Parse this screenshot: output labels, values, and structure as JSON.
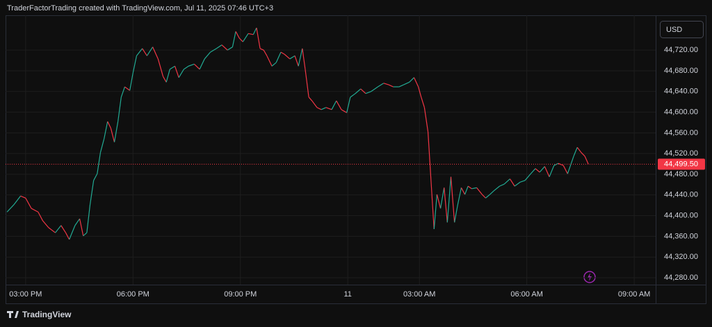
{
  "header": {
    "title": "TraderFactorTrading created with TradingView.com, Jul 11, 2025 07:46 UTC+3",
    "currency": "USD"
  },
  "footer": {
    "brand": "TradingView"
  },
  "chart_data": {
    "type": "line",
    "up_color": "#22ab94",
    "down_color": "#f23645",
    "grid": true,
    "xlim": [
      14.44,
      33.6
    ],
    "xbreaks": [
      [
        24,
        25
      ]
    ],
    "xticks": [
      {
        "value": 15,
        "label": "03:00 PM"
      },
      {
        "value": 18,
        "label": "06:00 PM"
      },
      {
        "value": 21,
        "label": "09:00 PM"
      },
      {
        "value": 24,
        "label": "11"
      },
      {
        "value": 27,
        "label": "03:00 AM"
      },
      {
        "value": 30,
        "label": "06:00 AM"
      },
      {
        "value": 33,
        "label": "09:00 AM"
      }
    ],
    "ylim": [
      44266.6,
      44787.3
    ],
    "yticks": [
      {
        "value": 44280,
        "label": "44,280.00"
      },
      {
        "value": 44320,
        "label": "44,320.00"
      },
      {
        "value": 44360,
        "label": "44,360.00"
      },
      {
        "value": 44400,
        "label": "44,400.00"
      },
      {
        "value": 44440,
        "label": "44,440.00"
      },
      {
        "value": 44480,
        "label": "44,480.00"
      },
      {
        "value": 44520,
        "label": "44,520.00"
      },
      {
        "value": 44560,
        "label": "44,560.00"
      },
      {
        "value": 44600,
        "label": "44,600.00"
      },
      {
        "value": 44640,
        "label": "44,640.00"
      },
      {
        "value": 44680,
        "label": "44,680.00"
      },
      {
        "value": 44720,
        "label": "44,720.00"
      }
    ],
    "last_price": {
      "value": 44499.5,
      "label": "44,499.50"
    },
    "x": [
      14.48,
      14.67,
      14.86,
      15.0,
      15.16,
      15.35,
      15.48,
      15.64,
      15.83,
      15.99,
      16.12,
      16.22,
      16.38,
      16.51,
      16.61,
      16.71,
      16.8,
      16.9,
      17.0,
      17.09,
      17.19,
      17.29,
      17.38,
      17.48,
      17.58,
      17.67,
      17.77,
      17.91,
      18.0,
      18.1,
      18.26,
      18.39,
      18.55,
      18.7,
      18.84,
      18.93,
      19.03,
      19.17,
      19.28,
      19.42,
      19.55,
      19.71,
      19.86,
      20.0,
      20.16,
      20.33,
      20.48,
      20.64,
      20.78,
      20.87,
      20.97,
      21.07,
      21.22,
      21.36,
      21.45,
      21.55,
      21.65,
      21.74,
      21.88,
      22.0,
      22.13,
      22.23,
      22.38,
      22.52,
      22.62,
      22.73,
      22.81,
      22.91,
      23.0,
      23.14,
      23.26,
      23.39,
      23.55,
      23.68,
      23.82,
      23.97,
      25.07,
      25.21,
      25.36,
      25.5,
      25.65,
      25.84,
      26.0,
      26.14,
      26.27,
      26.43,
      26.56,
      26.72,
      26.85,
      26.97,
      27.05,
      27.14,
      27.24,
      27.3,
      27.36,
      27.41,
      27.49,
      27.59,
      27.69,
      27.78,
      27.88,
      27.98,
      28.07,
      28.17,
      28.27,
      28.36,
      28.46,
      28.6,
      28.75,
      28.85,
      28.97,
      29.08,
      29.24,
      29.37,
      29.53,
      29.66,
      29.82,
      29.95,
      30.11,
      30.24,
      30.36,
      30.5,
      30.63,
      30.76,
      30.88,
      31.02,
      31.14,
      31.21,
      31.31,
      31.41,
      31.52,
      31.62,
      31.72
    ],
    "values": [
      44407,
      44421,
      44438,
      44434,
      44414,
      44407,
      44390,
      44377,
      44367,
      44381,
      44367,
      44354,
      44381,
      44394,
      44361,
      44367,
      44421,
      44468,
      44481,
      44522,
      44548,
      44582,
      44569,
      44542,
      44582,
      44629,
      44649,
      44642,
      44676,
      44709,
      44723,
      44709,
      44726,
      44703,
      44669,
      44658,
      44683,
      44689,
      44667,
      44683,
      44689,
      44693,
      44683,
      44703,
      44716,
      44723,
      44730,
      44720,
      44726,
      44756,
      44743,
      44736,
      44752,
      44750,
      44763,
      44723,
      44720,
      44709,
      44689,
      44696,
      44716,
      44712,
      44703,
      44709,
      44689,
      44723,
      44683,
      44629,
      44622,
      44609,
      44605,
      44609,
      44605,
      44622,
      44605,
      44599,
      44629,
      44636,
      44645,
      44636,
      44640,
      44649,
      44656,
      44653,
      44649,
      44649,
      44653,
      44658,
      44667,
      44649,
      44629,
      44609,
      44562,
      44495,
      44428,
      44374,
      44441,
      44414,
      44454,
      44387,
      44475,
      44387,
      44421,
      44454,
      44441,
      44457,
      44452,
      44454,
      44441,
      44434,
      44441,
      44448,
      44457,
      44461,
      44471,
      44457,
      44465,
      44468,
      44481,
      44491,
      44484,
      44495,
      44475,
      44497,
      44501,
      44497,
      44481,
      44495,
      44515,
      44532,
      44522,
      44515,
      44499.5
    ]
  }
}
